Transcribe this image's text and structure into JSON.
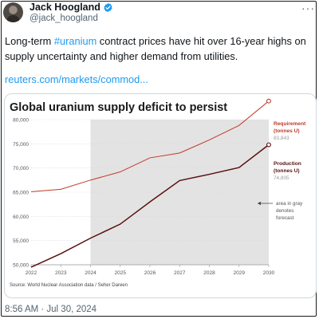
{
  "author": {
    "name": "Jack Hoogland",
    "handle": "@jack_hoogland"
  },
  "tweet": {
    "text_before": "Long-term ",
    "hashtag": "#uranium",
    "text_after": " contract prices have hit over 16-year highs on supply uncertainty and higher demand from utilities.",
    "link": "reuters.com/markets/commod..."
  },
  "more_label": "···",
  "timestamp": "8:56 AM · Jul 30, 2024",
  "colors": {
    "requirement": "#c0392b",
    "production": "#5a0f0f",
    "forecast_band": "#e3e3e3",
    "link": "#1d9bf0"
  },
  "icons": {
    "verified": "verified-badge-icon",
    "more": "more-icon"
  },
  "chart_data": {
    "type": "line",
    "title": "Global uranium supply deficit to persist",
    "x": [
      "2022",
      "2023",
      "2024",
      "2025",
      "2026",
      "2027",
      "2028",
      "2029",
      "2030"
    ],
    "ylim": [
      50000,
      80000
    ],
    "yticks": [
      "50,000",
      "55,000",
      "60,000",
      "65,000",
      "70,000",
      "75,000",
      "80,000"
    ],
    "forecast_from": "2024",
    "series": [
      {
        "name": "Requirement (tonnes U)",
        "values": [
          65100,
          65600,
          67500,
          69200,
          72100,
          73100,
          75800,
          78800,
          83843
        ],
        "end_label": "83,843"
      },
      {
        "name": "Production (tonnes U)",
        "values": [
          49500,
          52300,
          55500,
          58400,
          63000,
          67400,
          68700,
          70100,
          74805
        ],
        "end_label": "74,805"
      }
    ],
    "annotation": "area in gray denotes forecast",
    "source": "Source: World Nuclear Association data / Seher Dareen"
  }
}
